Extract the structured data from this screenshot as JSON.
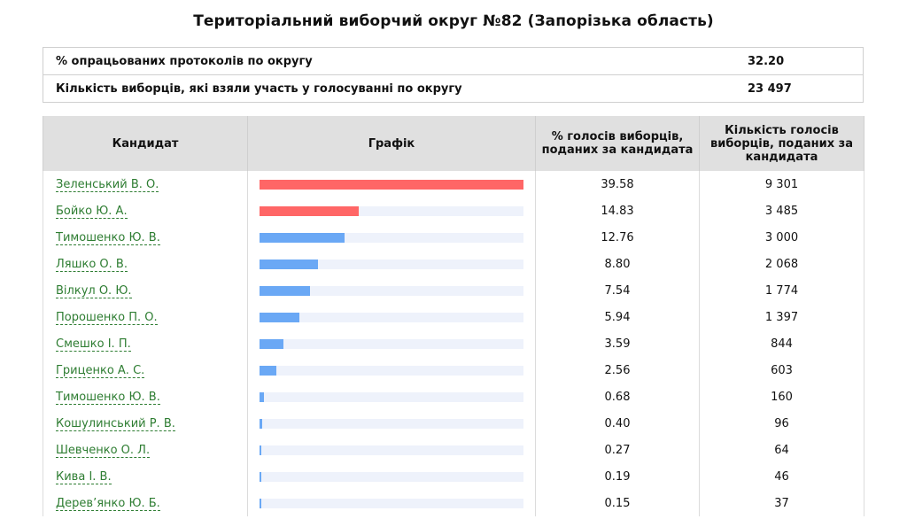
{
  "title": "Територіальний виборчий округ №82 (Запорізька область)",
  "summary": [
    {
      "label": "% опрацьованих протоколів по округу",
      "value": "32.20"
    },
    {
      "label": "Кількість виборців, які взяли участь у голосуванні по округу",
      "value": "23 497"
    }
  ],
  "headers": {
    "candidate": "Кандидат",
    "chart": "Графік",
    "percent": "% голосів виборців, поданих за кандидата",
    "count": "Кількість голосів виборців, поданих за кандидата"
  },
  "colors": {
    "leader": "#ff6666",
    "other": "#6aa8f5",
    "track": "#eef2fb",
    "link": "#2e7d32"
  },
  "candidates": [
    {
      "name": "Зеленський В. О.",
      "percent": "39.58",
      "votes": "9 301",
      "pct": 39.58,
      "highlight": true
    },
    {
      "name": "Бойко Ю. А.",
      "percent": "14.83",
      "votes": "3 485",
      "pct": 14.83,
      "highlight": true
    },
    {
      "name": "Тимошенко Ю. В.",
      "percent": "12.76",
      "votes": "3 000",
      "pct": 12.76,
      "highlight": false
    },
    {
      "name": "Ляшко О. В.",
      "percent": "8.80",
      "votes": "2 068",
      "pct": 8.8,
      "highlight": false
    },
    {
      "name": "Вілкул О. Ю.",
      "percent": "7.54",
      "votes": "1 774",
      "pct": 7.54,
      "highlight": false
    },
    {
      "name": "Порошенко П. О.",
      "percent": "5.94",
      "votes": "1 397",
      "pct": 5.94,
      "highlight": false
    },
    {
      "name": "Смешко І. П.",
      "percent": "3.59",
      "votes": "844",
      "pct": 3.59,
      "highlight": false
    },
    {
      "name": "Гриценко А. С.",
      "percent": "2.56",
      "votes": "603",
      "pct": 2.56,
      "highlight": false
    },
    {
      "name": "Тимошенко Ю. В.",
      "percent": "0.68",
      "votes": "160",
      "pct": 0.68,
      "highlight": false
    },
    {
      "name": "Кошулинський Р. В.",
      "percent": "0.40",
      "votes": "96",
      "pct": 0.4,
      "highlight": false
    },
    {
      "name": "Шевченко О. Л.",
      "percent": "0.27",
      "votes": "64",
      "pct": 0.27,
      "highlight": false
    },
    {
      "name": "Кива І. В.",
      "percent": "0.19",
      "votes": "46",
      "pct": 0.19,
      "highlight": false
    },
    {
      "name": "Дерев’янко Ю. Б.",
      "percent": "0.15",
      "votes": "37",
      "pct": 0.15,
      "highlight": false
    }
  ]
}
